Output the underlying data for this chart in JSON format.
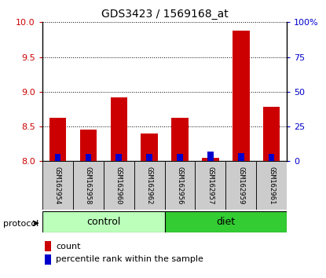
{
  "title": "GDS3423 / 1569168_at",
  "samples": [
    "GSM162954",
    "GSM162958",
    "GSM162960",
    "GSM162962",
    "GSM162956",
    "GSM162957",
    "GSM162959",
    "GSM162961"
  ],
  "groups": [
    "control",
    "control",
    "control",
    "control",
    "diet",
    "diet",
    "diet",
    "diet"
  ],
  "count_values": [
    8.62,
    8.45,
    8.92,
    8.4,
    8.62,
    8.05,
    9.88,
    8.78
  ],
  "pct_values": [
    5,
    5,
    5,
    5,
    5,
    7,
    6,
    5
  ],
  "ylim_left": [
    8.0,
    10.0
  ],
  "ylim_right": [
    0,
    100
  ],
  "yticks_left": [
    8.0,
    8.5,
    9.0,
    9.5,
    10.0
  ],
  "yticks_right": [
    0,
    25,
    50,
    75,
    100
  ],
  "bar_bottom": 8.0,
  "count_color": "#cc0000",
  "percentile_color": "#0000cc",
  "control_color": "#bbffbb",
  "diet_color": "#33cc33",
  "sample_bg_color": "#cccccc",
  "group_label_control": "control",
  "group_label_diet": "diet",
  "protocol_label": "protocol",
  "legend_count": "count",
  "legend_percentile": "percentile rank within the sample",
  "figsize": [
    4.15,
    3.54
  ],
  "dpi": 100
}
